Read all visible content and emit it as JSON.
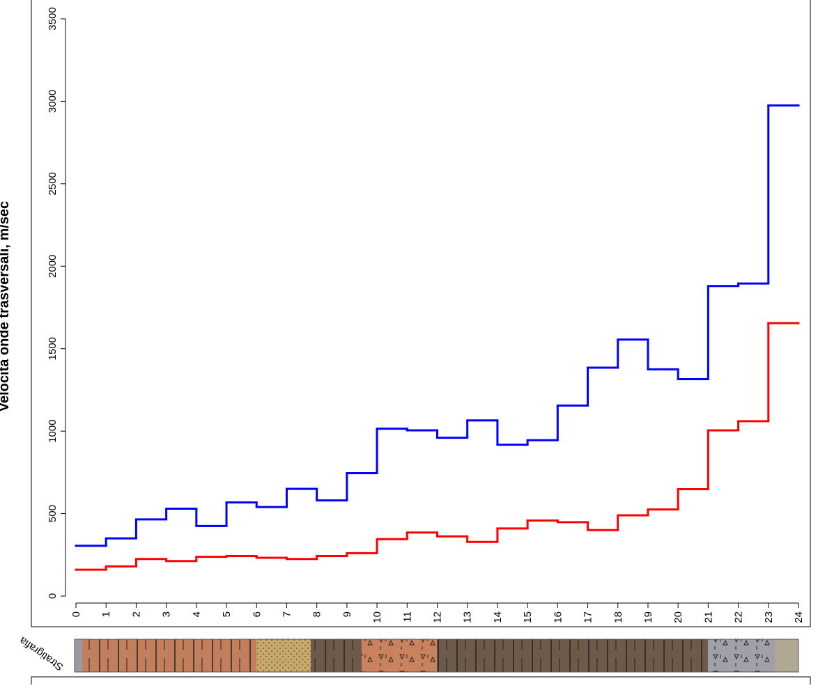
{
  "chart_data": {
    "type": "step",
    "ylabel": "Velocità onde trasversali, m/sec",
    "strip_label": "Stratigrafia",
    "x": [
      0,
      1,
      2,
      3,
      4,
      5,
      6,
      7,
      8,
      9,
      10,
      11,
      12,
      13,
      14,
      15,
      16,
      17,
      18,
      19,
      20,
      21,
      22,
      23
    ],
    "series": [
      {
        "color": "#0000ff",
        "values": [
          305,
          350,
          465,
          530,
          425,
          568,
          540,
          650,
          580,
          745,
          1015,
          1005,
          960,
          1065,
          918,
          945,
          1155,
          1385,
          1555,
          1375,
          1315,
          1880,
          1895,
          2975
        ]
      },
      {
        "color": "#ff0000",
        "values": [
          160,
          180,
          225,
          212,
          238,
          243,
          232,
          225,
          243,
          260,
          345,
          385,
          362,
          328,
          410,
          458,
          448,
          400,
          490,
          525,
          648,
          1005,
          1060,
          1655
        ]
      }
    ],
    "xlim": [
      0,
      24
    ],
    "xticks": [
      0,
      1,
      2,
      3,
      4,
      5,
      6,
      7,
      8,
      9,
      10,
      11,
      12,
      13,
      14,
      15,
      16,
      17,
      18,
      19,
      20,
      21,
      22,
      23,
      24
    ],
    "ylim": [
      0,
      3500
    ],
    "yticks": [
      0,
      500,
      1000,
      1500,
      2000,
      2500,
      3000,
      3500
    ]
  }
}
